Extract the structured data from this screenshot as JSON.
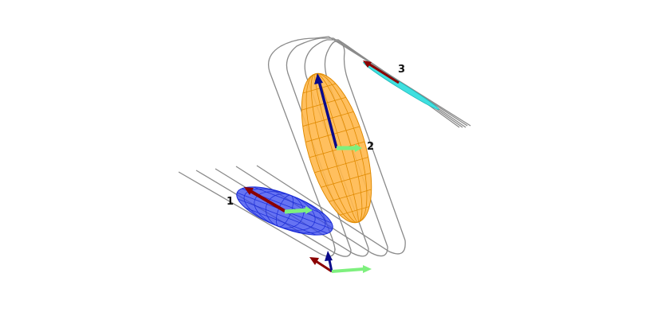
{
  "labels": {
    "ellipsoid_1": "1",
    "ellipsoid_2": "2",
    "ellipsoid_3": "3"
  },
  "colors": {
    "background": "#ffffff",
    "trajectory": "#8a8a8a",
    "ellipsoid_1_fill": "#3344ee",
    "ellipsoid_1_mesh": "#1a2bd6",
    "ellipsoid_2_fill": "#ffb84d",
    "ellipsoid_2_mesh": "#e08a00",
    "ellipsoid_3_fill": "#3fe0e0",
    "axis_red": "#8b0000",
    "axis_green": "#7ef07e",
    "axis_blue": "#0a0a8a"
  }
}
